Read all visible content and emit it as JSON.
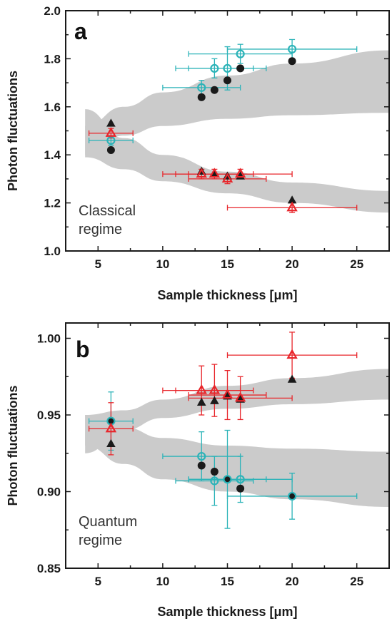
{
  "chart_data": [
    {
      "type": "scatter",
      "panel_label": "a",
      "annotation": [
        "Classical",
        "regime"
      ],
      "xlabel": "Sample thickness [μm]",
      "ylabel": "Photon fluctuations",
      "xlim": [
        2.5,
        27.5
      ],
      "ylim": [
        1.0,
        2.0
      ],
      "xticks": [
        5,
        10,
        15,
        20,
        25
      ],
      "yticks": [
        1.0,
        1.2,
        1.4,
        1.6,
        1.8,
        2.0
      ],
      "ytick_labels": [
        "1.0",
        "1.2",
        "1.4",
        "1.6",
        "1.8",
        "2.0"
      ],
      "grid": false,
      "colors": {
        "black": "#1a1a1a",
        "red": "#e8262b",
        "cyan": "#2bb3b8",
        "band": "#cbcbcb"
      },
      "bands": [
        {
          "x": [
            4,
            7,
            10,
            15,
            20,
            27.5
          ],
          "lower": [
            1.4,
            1.48,
            1.52,
            1.55,
            1.565,
            1.575
          ],
          "upper": [
            1.52,
            1.6,
            1.66,
            1.73,
            1.78,
            1.835
          ]
        },
        {
          "x": [
            4,
            7,
            10,
            15,
            20,
            27.5
          ],
          "lower": [
            1.39,
            1.34,
            1.29,
            1.24,
            1.2,
            1.16
          ],
          "upper": [
            1.59,
            1.47,
            1.4,
            1.33,
            1.285,
            1.25
          ]
        }
      ],
      "series": [
        {
          "marker": "circle-filled",
          "color": "black",
          "points": [
            {
              "x": 6,
              "y": 1.42
            },
            {
              "x": 13,
              "y": 1.64
            },
            {
              "x": 14,
              "y": 1.67
            },
            {
              "x": 15,
              "y": 1.71
            },
            {
              "x": 16,
              "y": 1.76
            },
            {
              "x": 20,
              "y": 1.79
            }
          ]
        },
        {
          "marker": "circle-open",
          "color": "cyan",
          "points": [
            {
              "x": 6,
              "y": 1.46,
              "xerr": 1.7,
              "yerr": 0.02
            },
            {
              "x": 13,
              "y": 1.68,
              "xerr": 3.0,
              "yerr": 0.03
            },
            {
              "x": 14,
              "y": 1.76,
              "xerr": 3.0,
              "yerr": 0.04
            },
            {
              "x": 15,
              "y": 1.76,
              "xerr": 3.0,
              "yerr": 0.09
            },
            {
              "x": 16,
              "y": 1.82,
              "xerr": 4.0,
              "yerr": 0.04
            },
            {
              "x": 20,
              "y": 1.84,
              "xerr": 5.0,
              "yerr": 0.04
            }
          ]
        },
        {
          "marker": "triangle-filled",
          "color": "black",
          "points": [
            {
              "x": 6,
              "y": 1.53
            },
            {
              "x": 13,
              "y": 1.33
            },
            {
              "x": 14,
              "y": 1.32
            },
            {
              "x": 15,
              "y": 1.31
            },
            {
              "x": 16,
              "y": 1.31
            },
            {
              "x": 20,
              "y": 1.21
            }
          ]
        },
        {
          "marker": "triangle-open",
          "color": "red",
          "points": [
            {
              "x": 6,
              "y": 1.49,
              "xerr": 1.7,
              "yerr": 0.02
            },
            {
              "x": 13,
              "y": 1.32,
              "xerr": 3.0,
              "yerr": 0.02
            },
            {
              "x": 14,
              "y": 1.32,
              "xerr": 3.0,
              "yerr": 0.02
            },
            {
              "x": 15,
              "y": 1.3,
              "xerr": 3.0,
              "yerr": 0.02
            },
            {
              "x": 16,
              "y": 1.32,
              "xerr": 4.0,
              "yerr": 0.02
            },
            {
              "x": 20,
              "y": 1.18,
              "xerr": 5.0,
              "yerr": 0.02
            }
          ]
        }
      ]
    },
    {
      "type": "scatter",
      "panel_label": "b",
      "annotation": [
        "Quantum",
        "regime"
      ],
      "xlabel": "Sample thickness [μm]",
      "ylabel": "Photon fluctuations",
      "xlim": [
        2.5,
        27.5
      ],
      "ylim": [
        0.85,
        1.01
      ],
      "xticks": [
        5,
        10,
        15,
        20,
        25
      ],
      "yticks": [
        0.85,
        0.9,
        0.95,
        1.0
      ],
      "ytick_labels": [
        "0.85",
        "0.90",
        "0.95",
        "1.00"
      ],
      "grid": false,
      "colors": {
        "black": "#1a1a1a",
        "red": "#e8262b",
        "cyan": "#2bb3b8",
        "band": "#cbcbcb"
      },
      "bands": [
        {
          "x": [
            4,
            7,
            10,
            15,
            20,
            27.5
          ],
          "lower": [
            0.925,
            0.94,
            0.948,
            0.954,
            0.957,
            0.96
          ],
          "upper": [
            0.95,
            0.953,
            0.96,
            0.969,
            0.974,
            0.98
          ]
        },
        {
          "x": [
            4,
            7,
            10,
            15,
            20,
            27.5
          ],
          "lower": [
            0.93,
            0.918,
            0.908,
            0.9,
            0.895,
            0.89
          ],
          "upper": [
            0.95,
            0.942,
            0.935,
            0.93,
            0.928,
            0.926
          ]
        }
      ],
      "series": [
        {
          "marker": "circle-filled",
          "color": "black",
          "points": [
            {
              "x": 6,
              "y": 0.946
            },
            {
              "x": 13,
              "y": 0.917
            },
            {
              "x": 14,
              "y": 0.913
            },
            {
              "x": 15,
              "y": 0.908
            },
            {
              "x": 16,
              "y": 0.902
            },
            {
              "x": 20,
              "y": 0.897
            }
          ]
        },
        {
          "marker": "circle-open",
          "color": "cyan",
          "points": [
            {
              "x": 6,
              "y": 0.946,
              "xerr": 1.7,
              "yerr": 0.019
            },
            {
              "x": 13,
              "y": 0.923,
              "xerr": 3.0,
              "yerr": 0.016
            },
            {
              "x": 14,
              "y": 0.907,
              "xerr": 3.0,
              "yerr": 0.016
            },
            {
              "x": 15,
              "y": 0.908,
              "xerr": 3.0,
              "yerr": 0.032
            },
            {
              "x": 16,
              "y": 0.908,
              "xerr": 4.0,
              "yerr": 0.015
            },
            {
              "x": 20,
              "y": 0.897,
              "xerr": 5.0,
              "yerr": 0.015
            }
          ]
        },
        {
          "marker": "triangle-filled",
          "color": "black",
          "points": [
            {
              "x": 6,
              "y": 0.931
            },
            {
              "x": 13,
              "y": 0.958
            },
            {
              "x": 14,
              "y": 0.959
            },
            {
              "x": 15,
              "y": 0.962
            },
            {
              "x": 16,
              "y": 0.96
            },
            {
              "x": 20,
              "y": 0.973
            }
          ]
        },
        {
          "marker": "triangle-open",
          "color": "red",
          "points": [
            {
              "x": 6,
              "y": 0.941,
              "xerr": 1.7,
              "yerr": 0.017
            },
            {
              "x": 13,
              "y": 0.966,
              "xerr": 3.0,
              "yerr": 0.016
            },
            {
              "x": 14,
              "y": 0.966,
              "xerr": 3.0,
              "yerr": 0.017
            },
            {
              "x": 15,
              "y": 0.963,
              "xerr": 3.0,
              "yerr": 0.016
            },
            {
              "x": 16,
              "y": 0.961,
              "xerr": 4.0,
              "yerr": 0.014
            },
            {
              "x": 20,
              "y": 0.989,
              "xerr": 5.0,
              "yerr": 0.015
            }
          ]
        }
      ]
    }
  ]
}
